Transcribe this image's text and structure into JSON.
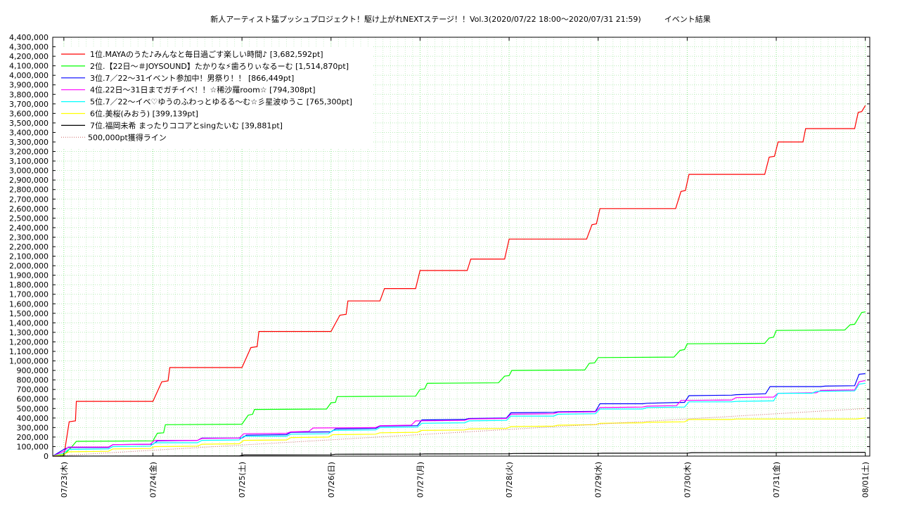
{
  "chart_data": {
    "type": "line",
    "title": "新人アーティスト猛プッシュプロジェクト！駆け上がれNEXTステージ！！Vol.3(2020/07/22 18:00〜2020/07/31 21:59)　　　イベント結果",
    "ylim": [
      0,
      4400000
    ],
    "yticks": [
      "0",
      "100,000",
      "200,000",
      "300,000",
      "400,000",
      "500,000",
      "600,000",
      "700,000",
      "800,000",
      "900,000",
      "1,000,000",
      "1,100,000",
      "1,200,000",
      "1,300,000",
      "1,400,000",
      "1,500,000",
      "1,600,000",
      "1,700,000",
      "1,800,000",
      "1,900,000",
      "2,000,000",
      "2,100,000",
      "2,200,000",
      "2,300,000",
      "2,400,000",
      "2,500,000",
      "2,600,000",
      "2,700,000",
      "2,800,000",
      "2,900,000",
      "3,000,000",
      "3,100,000",
      "3,200,000",
      "3,300,000",
      "3,400,000",
      "3,500,000",
      "3,600,000",
      "3,700,000",
      "3,800,000",
      "3,900,000",
      "4,000,000",
      "4,100,000",
      "4,200,000",
      "4,300,000",
      "4,400,000"
    ],
    "xticks": [
      "07/23(木)",
      "07/24(金)",
      "07/25(土)",
      "07/26(日)",
      "07/27(月)",
      "07/28(火)",
      "07/29(水)",
      "07/30(木)",
      "07/31(金)",
      "08/01(土)"
    ],
    "xrange_days": [
      -0.125,
      9.05
    ],
    "grid": true,
    "legend_position": "top-left",
    "series": [
      {
        "name": "1位.MAYAのうた♪みんなと毎日過ごす楽しい時間♪ [3,682,592pt]",
        "color": "#ff0000",
        "points": [
          [
            -0.125,
            0
          ],
          [
            0.0,
            0
          ],
          [
            0.06,
            360000
          ],
          [
            0.13,
            370000
          ],
          [
            0.14,
            575000
          ],
          [
            1.0,
            575000
          ],
          [
            1.1,
            780000
          ],
          [
            1.17,
            790000
          ],
          [
            1.19,
            930000
          ],
          [
            2.0,
            930000
          ],
          [
            2.1,
            1140000
          ],
          [
            2.17,
            1150000
          ],
          [
            2.19,
            1310000
          ],
          [
            3.0,
            1310000
          ],
          [
            3.1,
            1480000
          ],
          [
            3.17,
            1490000
          ],
          [
            3.19,
            1630000
          ],
          [
            3.55,
            1630000
          ],
          [
            3.6,
            1760000
          ],
          [
            3.95,
            1760000
          ],
          [
            4.0,
            1950000
          ],
          [
            4.53,
            1950000
          ],
          [
            4.57,
            2070000
          ],
          [
            4.95,
            2070000
          ],
          [
            5.0,
            2280000
          ],
          [
            5.87,
            2280000
          ],
          [
            5.93,
            2430000
          ],
          [
            5.98,
            2440000
          ],
          [
            6.02,
            2600000
          ],
          [
            6.87,
            2600000
          ],
          [
            6.93,
            2780000
          ],
          [
            6.98,
            2790000
          ],
          [
            7.02,
            2960000
          ],
          [
            7.87,
            2960000
          ],
          [
            7.92,
            3140000
          ],
          [
            7.98,
            3150000
          ],
          [
            8.02,
            3300000
          ],
          [
            8.3,
            3300000
          ],
          [
            8.33,
            3440000
          ],
          [
            8.88,
            3440000
          ],
          [
            8.92,
            3610000
          ],
          [
            8.96,
            3620000
          ],
          [
            9.0,
            3682592
          ]
        ]
      },
      {
        "name": "2位.【22日〜＃JOYSOUND】たかりな⚡歯ろりぃなるーむ [1,514,870pt]",
        "color": "#00ff00",
        "points": [
          [
            -0.125,
            0
          ],
          [
            0.0,
            10000
          ],
          [
            0.1,
            110000
          ],
          [
            0.14,
            155000
          ],
          [
            1.0,
            160000
          ],
          [
            1.05,
            240000
          ],
          [
            1.12,
            245000
          ],
          [
            1.14,
            330000
          ],
          [
            2.0,
            335000
          ],
          [
            2.07,
            430000
          ],
          [
            2.12,
            440000
          ],
          [
            2.14,
            490000
          ],
          [
            2.95,
            495000
          ],
          [
            3.0,
            560000
          ],
          [
            3.05,
            565000
          ],
          [
            3.07,
            625000
          ],
          [
            3.95,
            630000
          ],
          [
            4.0,
            700000
          ],
          [
            4.05,
            705000
          ],
          [
            4.08,
            765000
          ],
          [
            4.88,
            770000
          ],
          [
            4.95,
            840000
          ],
          [
            5.0,
            845000
          ],
          [
            5.03,
            900000
          ],
          [
            5.85,
            905000
          ],
          [
            5.9,
            975000
          ],
          [
            5.96,
            980000
          ],
          [
            6.0,
            1035000
          ],
          [
            6.85,
            1040000
          ],
          [
            6.92,
            1110000
          ],
          [
            6.97,
            1120000
          ],
          [
            7.0,
            1180000
          ],
          [
            7.87,
            1185000
          ],
          [
            7.92,
            1240000
          ],
          [
            7.97,
            1250000
          ],
          [
            8.0,
            1320000
          ],
          [
            8.77,
            1325000
          ],
          [
            8.83,
            1380000
          ],
          [
            8.88,
            1385000
          ],
          [
            8.96,
            1510000
          ],
          [
            9.0,
            1514870
          ]
        ]
      },
      {
        "name": "3位.7／22〜31イベント参加中！男祭り！！ [866,449pt]",
        "color": "#0000ff",
        "points": [
          [
            -0.125,
            0
          ],
          [
            0.0,
            70000
          ],
          [
            0.05,
            90000
          ],
          [
            0.5,
            90000
          ],
          [
            0.55,
            120000
          ],
          [
            1.0,
            125000
          ],
          [
            1.05,
            160000
          ],
          [
            1.5,
            165000
          ],
          [
            1.55,
            190000
          ],
          [
            2.0,
            190000
          ],
          [
            2.05,
            220000
          ],
          [
            2.5,
            225000
          ],
          [
            2.55,
            250000
          ],
          [
            3.0,
            255000
          ],
          [
            3.05,
            285000
          ],
          [
            3.5,
            290000
          ],
          [
            3.55,
            315000
          ],
          [
            3.97,
            320000
          ],
          [
            4.02,
            380000
          ],
          [
            4.5,
            385000
          ],
          [
            4.55,
            395000
          ],
          [
            4.97,
            400000
          ],
          [
            5.02,
            455000
          ],
          [
            5.5,
            460000
          ],
          [
            5.55,
            465000
          ],
          [
            5.97,
            470000
          ],
          [
            6.02,
            550000
          ],
          [
            6.5,
            550000
          ],
          [
            6.55,
            555000
          ],
          [
            6.97,
            565000
          ],
          [
            7.02,
            635000
          ],
          [
            7.5,
            640000
          ],
          [
            7.55,
            645000
          ],
          [
            7.88,
            655000
          ],
          [
            7.93,
            730000
          ],
          [
            8.5,
            730000
          ],
          [
            8.55,
            735000
          ],
          [
            8.88,
            740000
          ],
          [
            8.93,
            860000
          ],
          [
            9.0,
            866449
          ]
        ]
      },
      {
        "name": "4位.22日〜31日までガチイベ！！☆稀沙羅room☆ [794,308pt]",
        "color": "#ff00ff",
        "points": [
          [
            -0.125,
            0
          ],
          [
            0.0,
            50000
          ],
          [
            0.05,
            95000
          ],
          [
            0.5,
            95000
          ],
          [
            0.55,
            120000
          ],
          [
            0.97,
            125000
          ],
          [
            1.02,
            165000
          ],
          [
            1.5,
            165000
          ],
          [
            1.55,
            185000
          ],
          [
            1.97,
            190000
          ],
          [
            2.02,
            235000
          ],
          [
            2.5,
            240000
          ],
          [
            2.55,
            255000
          ],
          [
            2.75,
            260000
          ],
          [
            2.8,
            295000
          ],
          [
            3.5,
            300000
          ],
          [
            3.55,
            320000
          ],
          [
            3.9,
            325000
          ],
          [
            3.95,
            370000
          ],
          [
            4.5,
            375000
          ],
          [
            4.55,
            390000
          ],
          [
            4.97,
            395000
          ],
          [
            5.02,
            440000
          ],
          [
            5.5,
            445000
          ],
          [
            5.55,
            460000
          ],
          [
            5.97,
            465000
          ],
          [
            6.02,
            510000
          ],
          [
            6.5,
            515000
          ],
          [
            6.55,
            525000
          ],
          [
            6.88,
            530000
          ],
          [
            6.93,
            585000
          ],
          [
            7.5,
            590000
          ],
          [
            7.55,
            615000
          ],
          [
            7.97,
            620000
          ],
          [
            8.02,
            660000
          ],
          [
            8.45,
            665000
          ],
          [
            8.5,
            690000
          ],
          [
            8.88,
            695000
          ],
          [
            8.93,
            780000
          ],
          [
            9.0,
            794308
          ]
        ]
      },
      {
        "name": "5位.7／22〜イベ♡ゆうのふわっとゆるる〜む☆彡星波ゆうこ [765,300pt]",
        "color": "#00ffff",
        "points": [
          [
            -0.125,
            0
          ],
          [
            0.0,
            30000
          ],
          [
            0.05,
            70000
          ],
          [
            0.5,
            75000
          ],
          [
            0.55,
            100000
          ],
          [
            0.97,
            105000
          ],
          [
            1.02,
            140000
          ],
          [
            1.5,
            140000
          ],
          [
            1.55,
            165000
          ],
          [
            1.97,
            170000
          ],
          [
            2.02,
            210000
          ],
          [
            2.5,
            210000
          ],
          [
            2.55,
            230000
          ],
          [
            2.97,
            235000
          ],
          [
            3.02,
            270000
          ],
          [
            3.5,
            275000
          ],
          [
            3.55,
            300000
          ],
          [
            3.97,
            305000
          ],
          [
            4.02,
            345000
          ],
          [
            4.5,
            350000
          ],
          [
            4.55,
            370000
          ],
          [
            4.97,
            375000
          ],
          [
            5.02,
            420000
          ],
          [
            5.5,
            420000
          ],
          [
            5.55,
            440000
          ],
          [
            5.97,
            445000
          ],
          [
            6.02,
            495000
          ],
          [
            6.5,
            495000
          ],
          [
            6.55,
            510000
          ],
          [
            6.97,
            515000
          ],
          [
            7.02,
            570000
          ],
          [
            7.5,
            570000
          ],
          [
            7.55,
            575000
          ],
          [
            7.97,
            580000
          ],
          [
            8.02,
            660000
          ],
          [
            8.4,
            660000
          ],
          [
            8.45,
            680000
          ],
          [
            8.88,
            685000
          ],
          [
            8.93,
            755000
          ],
          [
            9.0,
            765300
          ]
        ]
      },
      {
        "name": "6位.美桜(みおう) [399,139pt]",
        "color": "#ffff00",
        "points": [
          [
            -0.125,
            0
          ],
          [
            0.0,
            20000
          ],
          [
            0.06,
            45000
          ],
          [
            0.5,
            50000
          ],
          [
            0.55,
            75000
          ],
          [
            0.97,
            80000
          ],
          [
            1.02,
            100000
          ],
          [
            1.5,
            105000
          ],
          [
            1.55,
            125000
          ],
          [
            1.97,
            130000
          ],
          [
            2.02,
            165000
          ],
          [
            2.5,
            170000
          ],
          [
            2.55,
            195000
          ],
          [
            2.97,
            200000
          ],
          [
            3.02,
            225000
          ],
          [
            3.5,
            230000
          ],
          [
            3.55,
            245000
          ],
          [
            3.97,
            250000
          ],
          [
            4.02,
            270000
          ],
          [
            4.5,
            275000
          ],
          [
            4.55,
            285000
          ],
          [
            4.97,
            290000
          ],
          [
            5.02,
            310000
          ],
          [
            5.5,
            315000
          ],
          [
            5.55,
            325000
          ],
          [
            5.97,
            330000
          ],
          [
            6.02,
            345000
          ],
          [
            6.5,
            350000
          ],
          [
            6.55,
            355000
          ],
          [
            6.97,
            360000
          ],
          [
            7.02,
            385000
          ],
          [
            7.5,
            385000
          ],
          [
            7.55,
            390000
          ],
          [
            8.9,
            390000
          ],
          [
            8.95,
            395000
          ],
          [
            9.0,
            399139
          ]
        ]
      },
      {
        "name": "7位.福岡未希 まったりココアとsingたいむ [39,881pt]",
        "color": "#000000",
        "points": [
          [
            -0.125,
            0
          ],
          [
            0.0,
            0
          ],
          [
            1.5,
            2000
          ],
          [
            1.97,
            2500
          ],
          [
            2.02,
            12000
          ],
          [
            3.0,
            13000
          ],
          [
            3.05,
            20000
          ],
          [
            4.0,
            21000
          ],
          [
            4.05,
            23000
          ],
          [
            5.0,
            24000
          ],
          [
            5.05,
            27000
          ],
          [
            6.0,
            28000
          ],
          [
            6.05,
            30000
          ],
          [
            7.0,
            31000
          ],
          [
            7.05,
            36000
          ],
          [
            8.0,
            37000
          ],
          [
            8.05,
            38000
          ],
          [
            9.0,
            39881
          ]
        ]
      },
      {
        "name": "500,000pt獲得ライン",
        "color": "#cc6666",
        "dashed": true,
        "points": [
          [
            -0.125,
            0
          ],
          [
            9.0,
            500000
          ]
        ]
      }
    ]
  }
}
